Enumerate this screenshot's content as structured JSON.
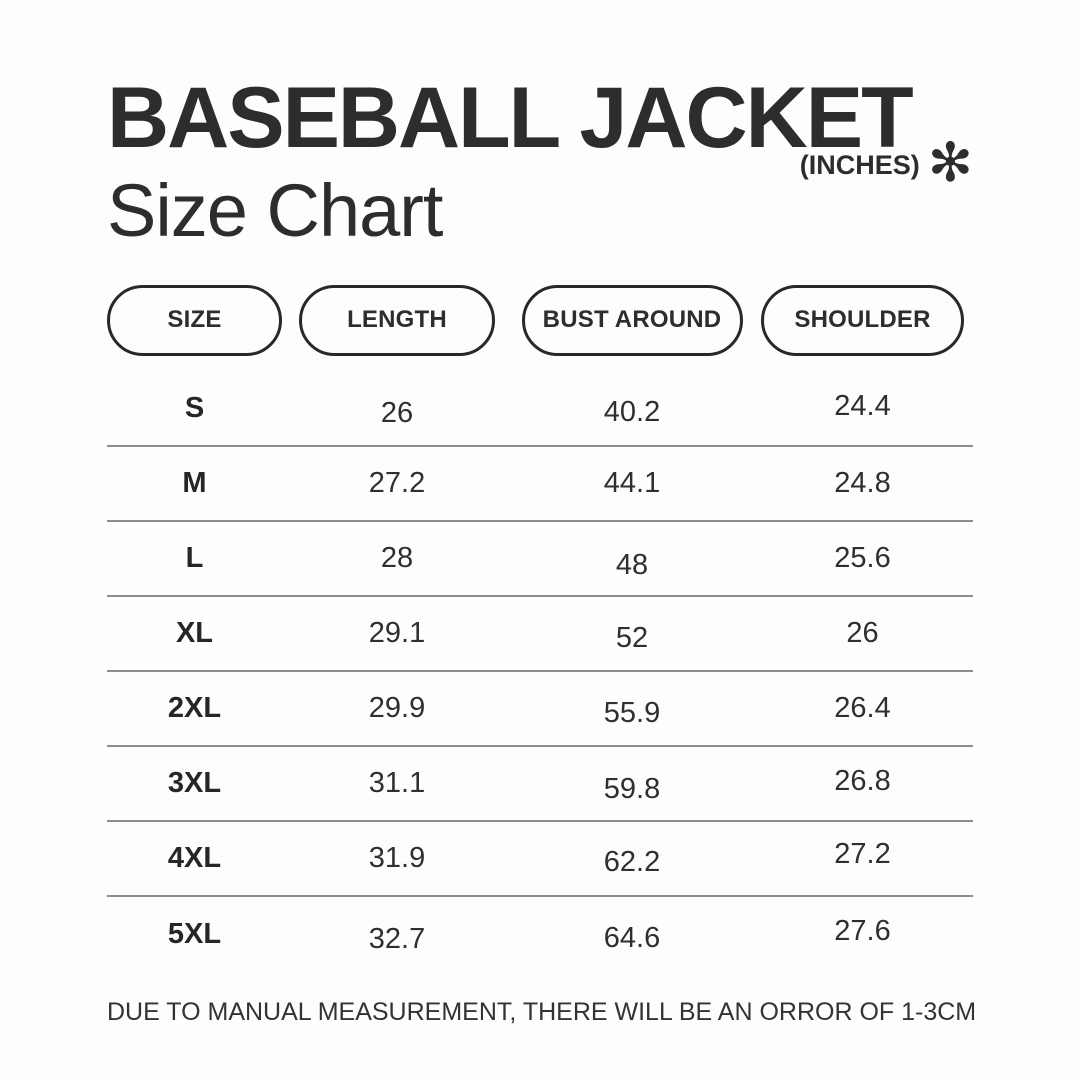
{
  "page": {
    "title_line1": "BASEBALL JACKET",
    "title_line2": "Size Chart",
    "units_label": "(INCHES)",
    "units_asterisk": "✻",
    "footnote": "DUE TO MANUAL MEASUREMENT, THERE WILL BE AN ORROR OF 1-3CM"
  },
  "table": {
    "columns": [
      "SIZE",
      "LENGTH",
      "BUST AROUND",
      "SHOULDER"
    ],
    "rows": [
      [
        "S",
        "26",
        "40.2",
        "24.4"
      ],
      [
        "M",
        "27.2",
        "44.1",
        "24.8"
      ],
      [
        "L",
        "28",
        "48",
        "25.6"
      ],
      [
        "XL",
        "29.1",
        "52",
        "26"
      ],
      [
        "2XL",
        "29.9",
        "55.9",
        "26.4"
      ],
      [
        "3XL",
        "31.1",
        "59.8",
        "26.8"
      ],
      [
        "4XL",
        "31.9",
        "62.2",
        "27.2"
      ],
      [
        "5XL",
        "32.7",
        "64.6",
        "27.6"
      ]
    ]
  },
  "chart_data": {
    "type": "table",
    "title": "BASEBALL JACKET Size Chart",
    "units": "inches",
    "columns": [
      "SIZE",
      "LENGTH",
      "BUST AROUND",
      "SHOULDER"
    ],
    "rows": [
      {
        "size": "S",
        "length": 26,
        "bust_around": 40.2,
        "shoulder": 24.4
      },
      {
        "size": "M",
        "length": 27.2,
        "bust_around": 44.1,
        "shoulder": 24.8
      },
      {
        "size": "L",
        "length": 28,
        "bust_around": 48,
        "shoulder": 25.6
      },
      {
        "size": "XL",
        "length": 29.1,
        "bust_around": 52,
        "shoulder": 26
      },
      {
        "size": "2XL",
        "length": 29.9,
        "bust_around": 55.9,
        "shoulder": 26.4
      },
      {
        "size": "3XL",
        "length": 31.1,
        "bust_around": 59.8,
        "shoulder": 26.8
      },
      {
        "size": "4XL",
        "length": 31.9,
        "bust_around": 62.2,
        "shoulder": 27.2
      },
      {
        "size": "5XL",
        "length": 32.7,
        "bust_around": 64.6,
        "shoulder": 27.6
      }
    ],
    "footnote": "DUE TO MANUAL MEASUREMENT, THERE WILL BE AN ORROR OF 1-3CM"
  },
  "colors": {
    "background": "#fdfdfd",
    "text": "#2d2d2d",
    "divider": "#8c8c8c",
    "pill_border": "#282828"
  }
}
